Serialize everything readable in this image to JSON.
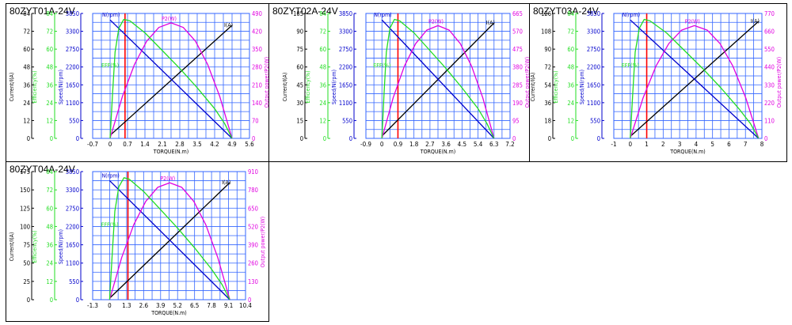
{
  "colors": {
    "current": "#000000",
    "efficiency": "#22dd22",
    "speed": "#0000cc",
    "power": "#e000e0",
    "rated_line": "#ff0000",
    "grid": "#3366ff"
  },
  "labels": {
    "current_axis": "Current/I(A)",
    "efficiency_axis": "Efficiency(%)",
    "speed_axis": "Speed/N(rpm)",
    "power_axis": "Output power/P2(W)",
    "x_axis": "TORQUE(N.m)",
    "series_current": "I(A)",
    "series_speed": "N(rpm)",
    "series_power": "P2(W)",
    "series_eff": "EFF(%)"
  },
  "chart_data": [
    {
      "type": "line",
      "title": "80ZYT01A-24V",
      "x_ticks": [
        "-0.7",
        "0",
        "0.7",
        "1.4",
        "2.1",
        "2.8",
        "3.5",
        "4.2",
        "4.9",
        "5.6"
      ],
      "current_ticks": [
        "0",
        "12",
        "24",
        "36",
        "48",
        "60",
        "72",
        "84"
      ],
      "efficiency_ticks": [
        "0",
        "12",
        "24",
        "36",
        "48",
        "60",
        "72",
        "84"
      ],
      "speed_ticks": [
        "0",
        "550",
        "1100",
        "1650",
        "2200",
        "2750",
        "3300",
        "3850"
      ],
      "power_ticks": [
        "0",
        "70",
        "140",
        "210",
        "280",
        "350",
        "420",
        "490"
      ],
      "xlim": [
        -0.7,
        5.6
      ],
      "current_lim": [
        0,
        84
      ],
      "efficiency_lim": [
        0,
        84
      ],
      "speed_lim": [
        0,
        3850
      ],
      "power_lim": [
        0,
        490
      ],
      "rated_torque": 0.6,
      "series": [
        {
          "name": "I(A)",
          "axis": "current",
          "points": [
            [
              0,
              2
            ],
            [
              4.9,
              76
            ]
          ]
        },
        {
          "name": "N(rpm)",
          "axis": "speed",
          "points": [
            [
              0,
              3650
            ],
            [
              4.9,
              0
            ]
          ]
        },
        {
          "name": "P2(W)",
          "axis": "power",
          "points": [
            [
              0,
              0
            ],
            [
              0.49,
              163
            ],
            [
              0.98,
              290
            ],
            [
              1.47,
              381
            ],
            [
              1.96,
              435
            ],
            [
              2.45,
              453
            ],
            [
              2.94,
              435
            ],
            [
              3.43,
              381
            ],
            [
              3.92,
              290
            ],
            [
              4.41,
              163
            ],
            [
              4.9,
              0
            ]
          ]
        },
        {
          "name": "EFF(%)",
          "axis": "efficiency",
          "points": [
            [
              0,
              0
            ],
            [
              0.1,
              30
            ],
            [
              0.2,
              58
            ],
            [
              0.35,
              74
            ],
            [
              0.55,
              80
            ],
            [
              0.8,
              79
            ],
            [
              1.4,
              71
            ],
            [
              2.1,
              59
            ],
            [
              2.8,
              47
            ],
            [
              3.5,
              34
            ],
            [
              4.2,
              20
            ],
            [
              4.6,
              10
            ],
            [
              4.9,
              0
            ]
          ]
        }
      ]
    },
    {
      "type": "line",
      "title": "80ZYT02A-24V",
      "x_ticks": [
        "-0.9",
        "0",
        "0.9",
        "1.8",
        "2.7",
        "3.6",
        "4.5",
        "5.4",
        "6.3",
        "7.2"
      ],
      "current_ticks": [
        "0",
        "15",
        "30",
        "45",
        "60",
        "75",
        "90",
        "105"
      ],
      "efficiency_ticks": [
        "0",
        "12",
        "24",
        "36",
        "48",
        "60",
        "72",
        "84"
      ],
      "speed_ticks": [
        "0",
        "550",
        "1100",
        "1650",
        "2200",
        "2750",
        "3300",
        "3850"
      ],
      "power_ticks": [
        "0",
        "95",
        "190",
        "285",
        "380",
        "475",
        "570",
        "665"
      ],
      "xlim": [
        -0.9,
        7.2
      ],
      "current_lim": [
        0,
        105
      ],
      "efficiency_lim": [
        0,
        84
      ],
      "speed_lim": [
        0,
        3850
      ],
      "power_lim": [
        0,
        665
      ],
      "rated_torque": 0.9,
      "series": [
        {
          "name": "I(A)",
          "axis": "current",
          "points": [
            [
              0,
              2
            ],
            [
              6.3,
              97
            ]
          ]
        },
        {
          "name": "N(rpm)",
          "axis": "speed",
          "points": [
            [
              0,
              3650
            ],
            [
              6.3,
              0
            ]
          ]
        },
        {
          "name": "P2(W)",
          "axis": "power",
          "points": [
            [
              0,
              0
            ],
            [
              0.63,
              216
            ],
            [
              1.26,
              384
            ],
            [
              1.89,
              504
            ],
            [
              2.52,
              576
            ],
            [
              3.15,
              600
            ],
            [
              3.78,
              576
            ],
            [
              4.41,
              504
            ],
            [
              5.04,
              384
            ],
            [
              5.67,
              216
            ],
            [
              6.3,
              0
            ]
          ]
        },
        {
          "name": "EFF(%)",
          "axis": "efficiency",
          "points": [
            [
              0,
              0
            ],
            [
              0.12,
              30
            ],
            [
              0.25,
              58
            ],
            [
              0.45,
              74
            ],
            [
              0.7,
              80
            ],
            [
              1.0,
              79
            ],
            [
              1.8,
              71
            ],
            [
              2.7,
              59
            ],
            [
              3.6,
              47
            ],
            [
              4.5,
              34
            ],
            [
              5.4,
              20
            ],
            [
              5.9,
              10
            ],
            [
              6.3,
              0
            ]
          ]
        }
      ]
    },
    {
      "type": "line",
      "title": "80ZYT03A-24V",
      "x_ticks": [
        "-1",
        "0",
        "1",
        "2",
        "3",
        "4",
        "5",
        "6",
        "7",
        "8"
      ],
      "current_ticks": [
        "0",
        "18",
        "36",
        "54",
        "72",
        "90",
        "108",
        "126"
      ],
      "efficiency_ticks": [
        "0",
        "12",
        "24",
        "36",
        "48",
        "60",
        "72",
        "84"
      ],
      "speed_ticks": [
        "0",
        "550",
        "1100",
        "1650",
        "2200",
        "2750",
        "3300",
        "3850"
      ],
      "power_ticks": [
        "0",
        "110",
        "220",
        "330",
        "440",
        "550",
        "660",
        "770"
      ],
      "xlim": [
        -1,
        8
      ],
      "current_lim": [
        0,
        126
      ],
      "efficiency_lim": [
        0,
        84
      ],
      "speed_lim": [
        0,
        3850
      ],
      "power_lim": [
        0,
        770
      ],
      "rated_torque": 1.0,
      "series": [
        {
          "name": "I(A)",
          "axis": "current",
          "points": [
            [
              0,
              2
            ],
            [
              7.8,
              118
            ]
          ]
        },
        {
          "name": "N(rpm)",
          "axis": "speed",
          "points": [
            [
              0,
              3650
            ],
            [
              7.8,
              0
            ]
          ]
        },
        {
          "name": "P2(W)",
          "axis": "power",
          "points": [
            [
              0,
              0
            ],
            [
              0.78,
              250
            ],
            [
              1.56,
              445
            ],
            [
              2.34,
              584
            ],
            [
              3.12,
              667
            ],
            [
              3.9,
              695
            ],
            [
              4.68,
              667
            ],
            [
              5.46,
              584
            ],
            [
              6.24,
              445
            ],
            [
              7.02,
              250
            ],
            [
              7.8,
              0
            ]
          ]
        },
        {
          "name": "EFF(%)",
          "axis": "efficiency",
          "points": [
            [
              0,
              0
            ],
            [
              0.15,
              30
            ],
            [
              0.3,
              58
            ],
            [
              0.55,
              74
            ],
            [
              0.85,
              80
            ],
            [
              1.2,
              79
            ],
            [
              2.2,
              71
            ],
            [
              3.3,
              59
            ],
            [
              4.4,
              47
            ],
            [
              5.5,
              34
            ],
            [
              6.6,
              20
            ],
            [
              7.3,
              10
            ],
            [
              7.8,
              0
            ]
          ]
        }
      ]
    },
    {
      "type": "line",
      "title": "80ZYT04A-24V",
      "x_ticks": [
        "-1.3",
        "0",
        "1.3",
        "2.6",
        "3.9",
        "5.2",
        "6.5",
        "7.8",
        "9.1",
        "10.4"
      ],
      "current_ticks": [
        "0",
        "25",
        "50",
        "75",
        "100",
        "125",
        "150",
        "175"
      ],
      "efficiency_ticks": [
        "0",
        "12",
        "24",
        "36",
        "48",
        "60",
        "72",
        "84"
      ],
      "speed_ticks": [
        "0",
        "550",
        "1100",
        "1650",
        "2200",
        "2750",
        "3300",
        "3850"
      ],
      "power_ticks": [
        "0",
        "130",
        "260",
        "390",
        "520",
        "650",
        "780",
        "910"
      ],
      "xlim": [
        -1.3,
        10.4
      ],
      "current_lim": [
        0,
        175
      ],
      "efficiency_lim": [
        0,
        84
      ],
      "speed_lim": [
        0,
        3850
      ],
      "power_lim": [
        0,
        910
      ],
      "rated_torque": 1.4,
      "series": [
        {
          "name": "I(A)",
          "axis": "current",
          "points": [
            [
              0,
              2
            ],
            [
              9.2,
              160
            ]
          ]
        },
        {
          "name": "N(rpm)",
          "axis": "speed",
          "points": [
            [
              0,
              3580
            ],
            [
              9.2,
              0
            ]
          ]
        },
        {
          "name": "P2(W)",
          "axis": "power",
          "points": [
            [
              0,
              0
            ],
            [
              0.92,
              299
            ],
            [
              1.84,
              532
            ],
            [
              2.76,
              698
            ],
            [
              3.68,
              798
            ],
            [
              4.6,
              831
            ],
            [
              5.52,
              798
            ],
            [
              6.44,
              698
            ],
            [
              7.36,
              532
            ],
            [
              8.28,
              299
            ],
            [
              9.2,
              0
            ]
          ]
        },
        {
          "name": "EFF(%)",
          "axis": "efficiency",
          "points": [
            [
              0,
              0
            ],
            [
              0.2,
              30
            ],
            [
              0.4,
              58
            ],
            [
              0.7,
              74
            ],
            [
              1.1,
              80
            ],
            [
              1.5,
              79
            ],
            [
              2.6,
              71
            ],
            [
              3.9,
              59
            ],
            [
              5.2,
              47
            ],
            [
              6.5,
              34
            ],
            [
              7.8,
              20
            ],
            [
              8.6,
              10
            ],
            [
              9.2,
              0
            ]
          ]
        }
      ]
    }
  ]
}
